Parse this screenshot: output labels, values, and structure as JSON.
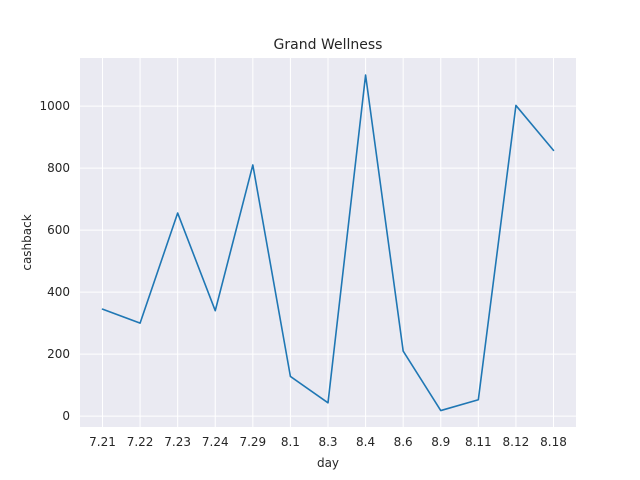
{
  "chart_data": {
    "type": "line",
    "title": "Grand Wellness",
    "xlabel": "day",
    "ylabel": "cashback",
    "categories": [
      "7.21",
      "7.22",
      "7.23",
      "7.24",
      "7.29",
      "8.1",
      "8.3",
      "8.4",
      "8.6",
      "8.9",
      "8.11",
      "8.12",
      "8.18"
    ],
    "series": [
      {
        "values": [
          345,
          300,
          655,
          340,
          810,
          128,
          43,
          1100,
          210,
          18,
          53,
          1002,
          857
        ]
      }
    ],
    "yticks": [
      0,
      200,
      400,
      600,
      800,
      1000
    ],
    "ylim": [
      -35,
      1155
    ],
    "grid": true,
    "line_color": "#1f77b4",
    "background_color": "#eaeaf2"
  }
}
